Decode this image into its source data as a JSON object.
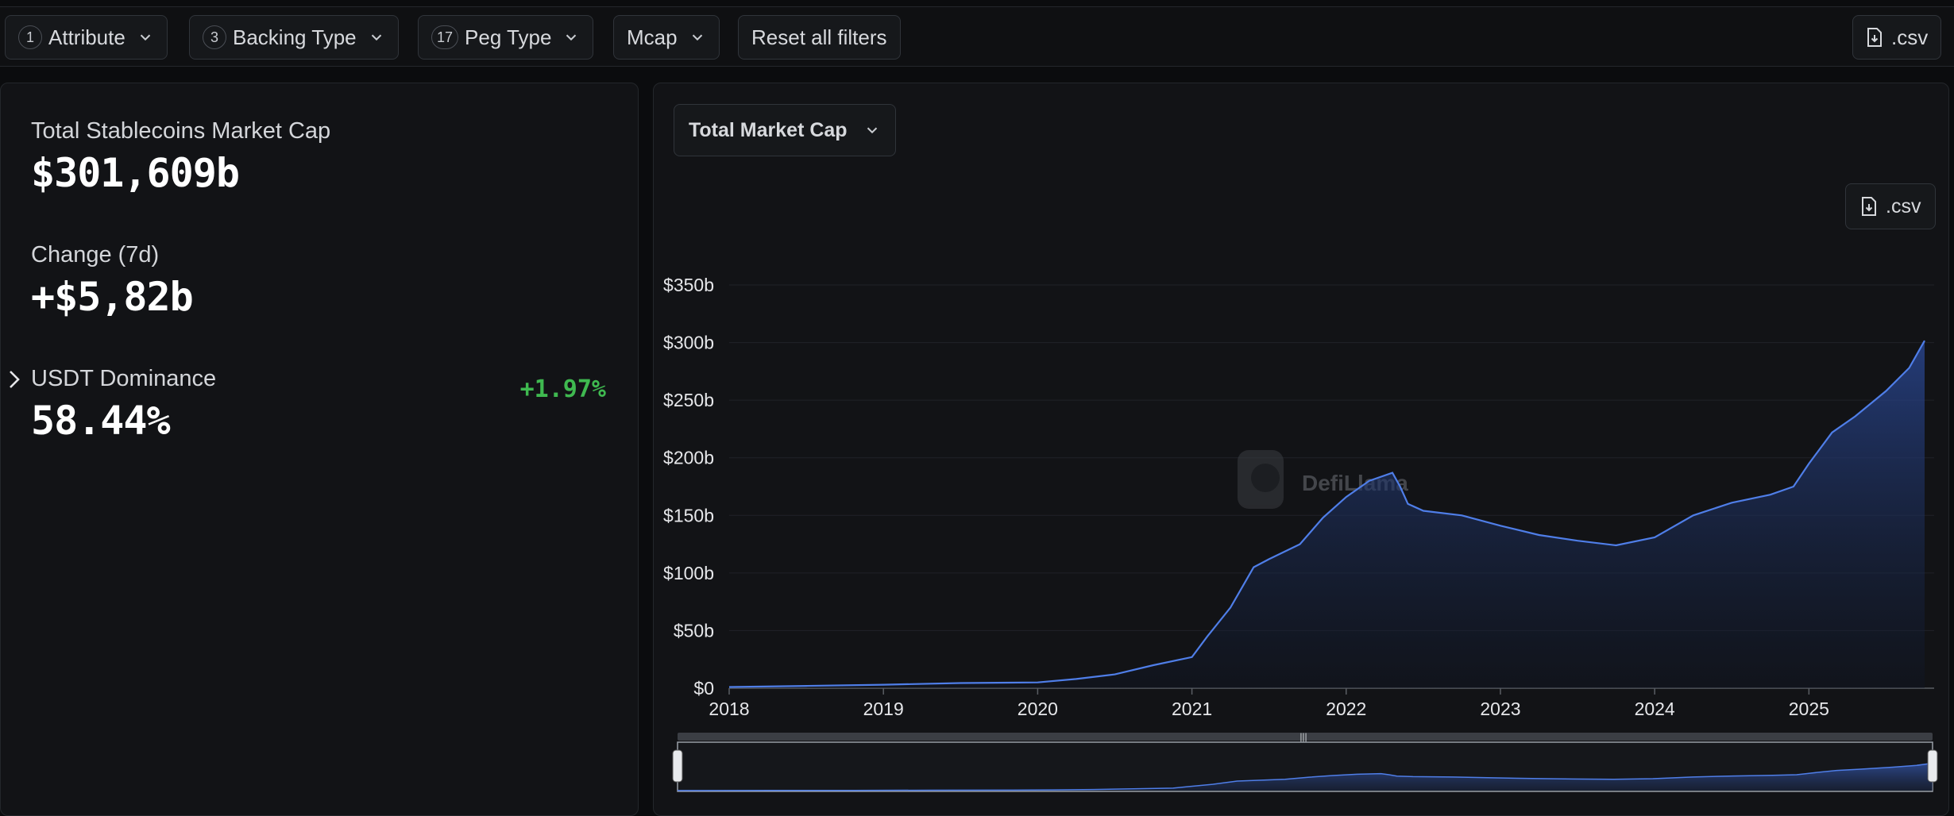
{
  "filters": {
    "attribute": {
      "count": "1",
      "label": "Attribute"
    },
    "backing": {
      "count": "3",
      "label": "Backing Type"
    },
    "peg": {
      "count": "17",
      "label": "Peg Type"
    },
    "mcap": {
      "label": "Mcap"
    },
    "reset": {
      "label": "Reset all filters"
    },
    "csv": {
      "label": ".csv"
    }
  },
  "stats": {
    "total_label": "Total Stablecoins Market Cap",
    "total_value": "$301,609b",
    "change_label": "Change (7d)",
    "change_value": "+$5,82b",
    "change_pct": "+1.97%",
    "dominance_label": "USDT Dominance",
    "dominance_value": "58.44%"
  },
  "chart_panel": {
    "metric_select": "Total Market Cap",
    "csv_label": ".csv",
    "watermark": "DefiLlama"
  },
  "colors": {
    "line": "#4f7ee8",
    "positive": "#3fb950",
    "background": "#121316"
  },
  "chart_data": {
    "type": "area",
    "title": "",
    "xlabel": "",
    "ylabel": "",
    "ylim": [
      0,
      350
    ],
    "xlim": [
      2018.0,
      2025.75
    ],
    "grid": true,
    "yticks": [
      0,
      50,
      100,
      150,
      200,
      250,
      300,
      350
    ],
    "ytick_labels": [
      "$0",
      "$50b",
      "$100b",
      "$150b",
      "$200b",
      "$250b",
      "$300b",
      "$350b"
    ],
    "xticks": [
      2018,
      2019,
      2020,
      2021,
      2022,
      2023,
      2024,
      2025
    ],
    "xtick_labels": [
      "2018",
      "2019",
      "2020",
      "2021",
      "2022",
      "2023",
      "2024",
      "2025"
    ],
    "series": [
      {
        "x": [
          2017.9,
          2018.5,
          2019.0,
          2019.5,
          2020.0,
          2020.25,
          2020.5,
          2020.75,
          2021.0,
          2021.1,
          2021.25,
          2021.4,
          2021.5,
          2021.7,
          2021.85,
          2022.0,
          2022.15,
          2022.3,
          2022.35,
          2022.4,
          2022.5,
          2022.75,
          2023.0,
          2023.25,
          2023.5,
          2023.75,
          2024.0,
          2024.25,
          2024.5,
          2024.75,
          2024.9,
          2025.0,
          2025.15,
          2025.3,
          2025.5,
          2025.65,
          2025.75
        ],
        "y": [
          1,
          2,
          3,
          4.5,
          5,
          8,
          12,
          20,
          27,
          45,
          70,
          105,
          112,
          125,
          148,
          166,
          180,
          187,
          175,
          160,
          154,
          150,
          141,
          133,
          128,
          124,
          131,
          150,
          161,
          168,
          175,
          195,
          222,
          236,
          258,
          278,
          301.6
        ]
      }
    ]
  }
}
